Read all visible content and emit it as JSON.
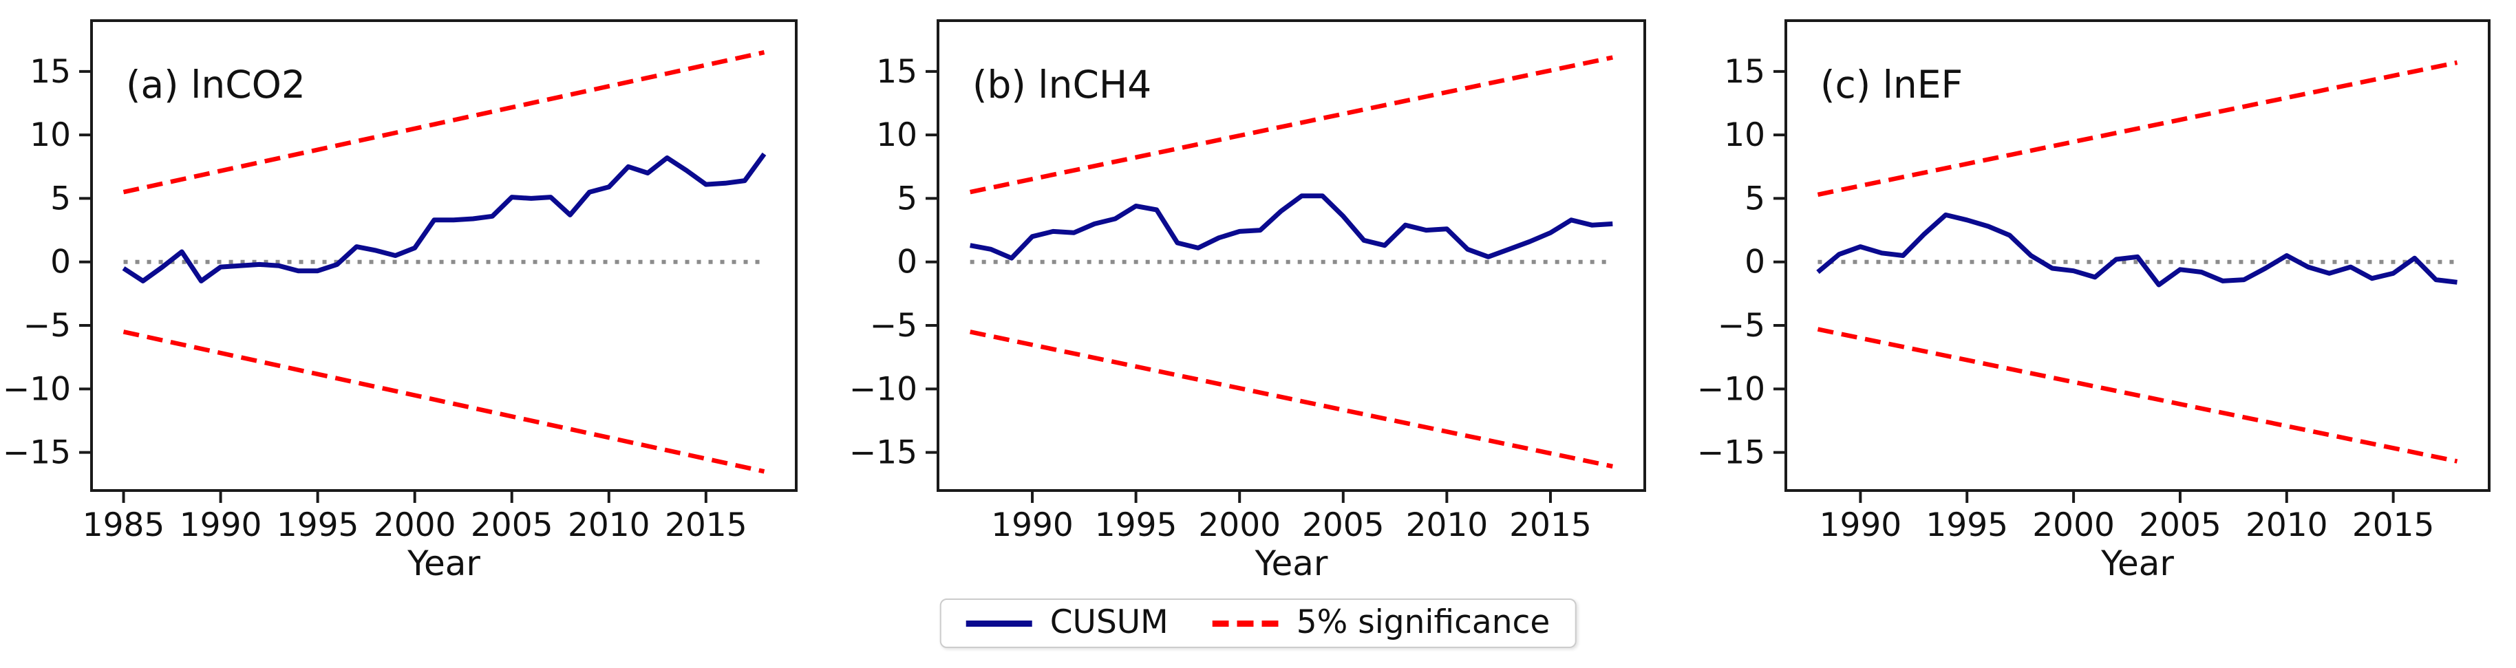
{
  "legend": {
    "items": [
      {
        "label": "CUSUM",
        "style": "solid",
        "color": "#0a0a8f"
      },
      {
        "label": "5% significance",
        "style": "dashed",
        "color": "#ff0000"
      }
    ]
  },
  "colors": {
    "cusum": "#0a0a8f",
    "significance": "#ff0000",
    "zero_line": "#8c8c8c",
    "axis": "#1a1a1a",
    "text": "#111111"
  },
  "chart_data": [
    {
      "id": "a",
      "type": "line",
      "title": "(a) lnCO2",
      "xlabel": "Year",
      "xlim": [
        1983.35,
        2019.65
      ],
      "ylim": [
        -18,
        19
      ],
      "xticks": [
        1985,
        1990,
        1995,
        2000,
        2005,
        2010,
        2015
      ],
      "yticks": [
        -15,
        -10,
        -5,
        0,
        5,
        10,
        15
      ],
      "grid": false,
      "zero_line": {
        "style": "dotted",
        "y": 0,
        "x_span": [
          1985,
          2018
        ]
      },
      "series": [
        {
          "name": "CUSUM",
          "style": "solid",
          "color_key": "cusum",
          "years": [
            1985,
            1986,
            1987,
            1988,
            1989,
            1990,
            1991,
            1992,
            1993,
            1994,
            1995,
            1996,
            1997,
            1998,
            1999,
            2000,
            2001,
            2002,
            2003,
            2004,
            2005,
            2006,
            2007,
            2008,
            2009,
            2010,
            2011,
            2012,
            2013,
            2014,
            2015,
            2016,
            2017,
            2018
          ],
          "values": [
            -0.5,
            -1.5,
            -0.4,
            0.8,
            -1.5,
            -0.4,
            -0.3,
            -0.2,
            -0.3,
            -0.7,
            -0.7,
            -0.2,
            1.2,
            0.9,
            0.5,
            1.1,
            3.3,
            3.3,
            3.4,
            3.6,
            5.1,
            5.0,
            5.1,
            3.7,
            5.5,
            5.9,
            7.5,
            7.0,
            8.2,
            7.2,
            6.1,
            6.2,
            6.4,
            8.5
          ]
        },
        {
          "name": "5% significance (upper)",
          "style": "dashed",
          "color_key": "significance",
          "years": [
            1985,
            2018
          ],
          "values": [
            5.5,
            16.5
          ]
        },
        {
          "name": "5% significance (lower)",
          "style": "dashed",
          "color_key": "significance",
          "years": [
            1985,
            2018
          ],
          "values": [
            -5.5,
            -16.5
          ]
        }
      ]
    },
    {
      "id": "b",
      "type": "line",
      "title": "(b) lnCH4",
      "xlabel": "Year",
      "xlim": [
        1985.45,
        2019.55
      ],
      "ylim": [
        -18,
        19
      ],
      "xticks": [
        1990,
        1995,
        2000,
        2005,
        2010,
        2015
      ],
      "yticks": [
        -15,
        -10,
        -5,
        0,
        5,
        10,
        15
      ],
      "grid": false,
      "zero_line": {
        "style": "dotted",
        "y": 0,
        "x_span": [
          1987,
          2018
        ]
      },
      "series": [
        {
          "name": "CUSUM",
          "style": "solid",
          "color_key": "cusum",
          "years": [
            1987,
            1988,
            1989,
            1990,
            1991,
            1992,
            1993,
            1994,
            1995,
            1996,
            1997,
            1998,
            1999,
            2000,
            2001,
            2002,
            2003,
            2004,
            2005,
            2006,
            2007,
            2008,
            2009,
            2010,
            2011,
            2012,
            2013,
            2014,
            2015,
            2016,
            2017,
            2018
          ],
          "values": [
            1.3,
            1.0,
            0.3,
            2.0,
            2.4,
            2.3,
            3.0,
            3.4,
            4.4,
            4.1,
            1.5,
            1.1,
            1.9,
            2.4,
            2.5,
            4.0,
            5.2,
            5.2,
            3.6,
            1.7,
            1.3,
            2.9,
            2.5,
            2.6,
            1.0,
            0.4,
            1.0,
            1.6,
            2.3,
            3.3,
            2.9,
            3.0
          ]
        },
        {
          "name": "5% significance (upper)",
          "style": "dashed",
          "color_key": "significance",
          "years": [
            1987,
            2018
          ],
          "values": [
            5.5,
            16.1
          ]
        },
        {
          "name": "5% significance (lower)",
          "style": "dashed",
          "color_key": "significance",
          "years": [
            1987,
            2018
          ],
          "values": [
            -5.5,
            -16.1
          ]
        }
      ]
    },
    {
      "id": "c",
      "type": "line",
      "title": "(c) lnEF",
      "xlabel": "Year",
      "xlim": [
        1986.5,
        2019.5
      ],
      "ylim": [
        -18,
        19
      ],
      "xticks": [
        1990,
        1995,
        2000,
        2005,
        2010,
        2015
      ],
      "yticks": [
        -15,
        -10,
        -5,
        0,
        5,
        10,
        15
      ],
      "grid": false,
      "zero_line": {
        "style": "dotted",
        "y": 0,
        "x_span": [
          1988,
          2018
        ]
      },
      "series": [
        {
          "name": "CUSUM",
          "style": "solid",
          "color_key": "cusum",
          "years": [
            1988,
            1989,
            1990,
            1991,
            1992,
            1993,
            1994,
            1995,
            1996,
            1997,
            1998,
            1999,
            2000,
            2001,
            2002,
            2003,
            2004,
            2005,
            2006,
            2007,
            2008,
            2009,
            2010,
            2011,
            2012,
            2013,
            2014,
            2015,
            2016,
            2017,
            2018
          ],
          "values": [
            -0.8,
            0.6,
            1.2,
            0.7,
            0.5,
            2.2,
            3.7,
            3.3,
            2.8,
            2.1,
            0.5,
            -0.5,
            -0.7,
            -1.2,
            0.2,
            0.4,
            -1.8,
            -0.6,
            -0.8,
            -1.5,
            -1.4,
            -0.5,
            0.5,
            -0.4,
            -0.9,
            -0.4,
            -1.3,
            -0.9,
            0.3,
            -1.4,
            -1.6
          ]
        },
        {
          "name": "5% significance (upper)",
          "style": "dashed",
          "color_key": "significance",
          "years": [
            1988,
            2018
          ],
          "values": [
            5.3,
            15.7
          ]
        },
        {
          "name": "5% significance (lower)",
          "style": "dashed",
          "color_key": "significance",
          "years": [
            1988,
            2018
          ],
          "values": [
            -5.3,
            -15.7
          ]
        }
      ]
    }
  ]
}
